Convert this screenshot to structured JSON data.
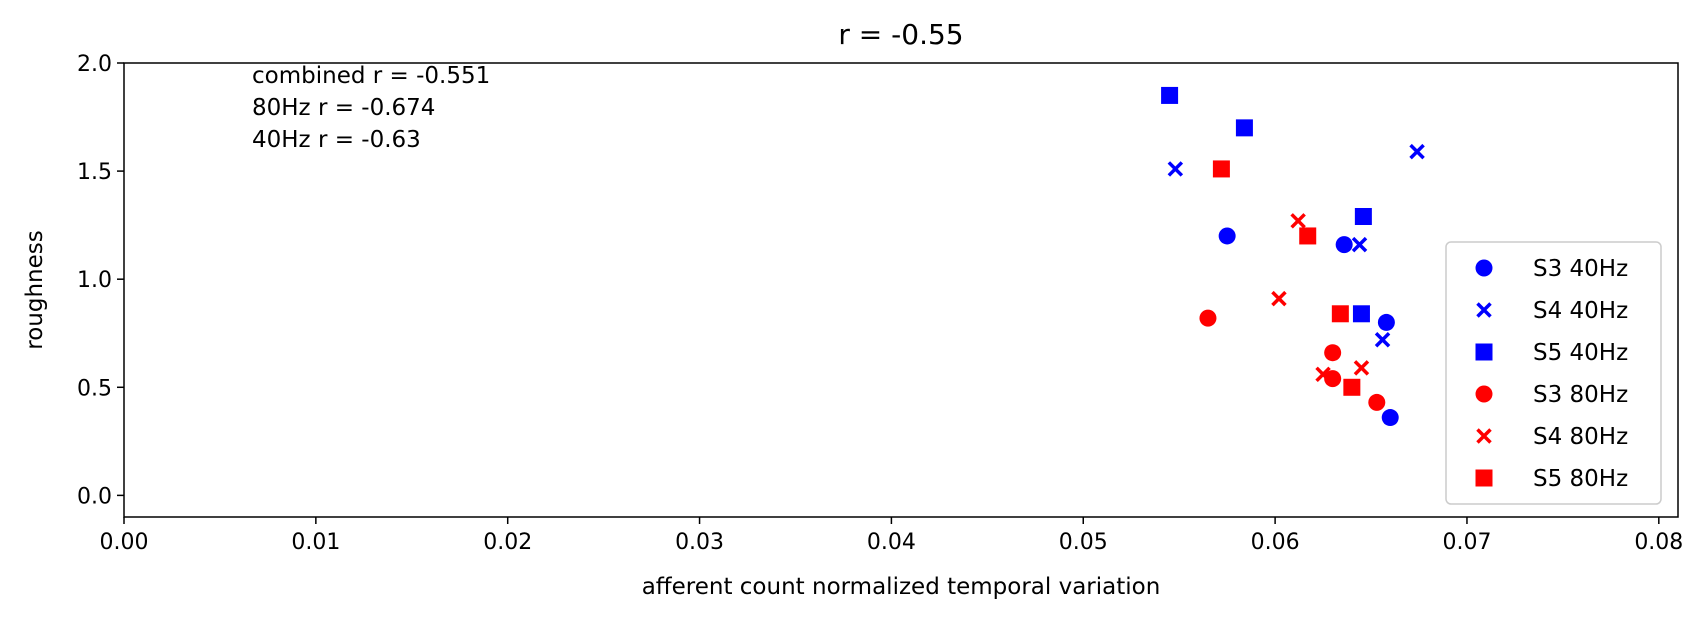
{
  "chart_data": {
    "type": "scatter",
    "title": "r = -0.55",
    "xlabel": "afferent count normalized temporal variation",
    "ylabel": "roughness",
    "xlim": [
      0.0,
      0.081
    ],
    "ylim": [
      -0.1,
      2.0
    ],
    "x_ticks": [
      "0.00",
      "0.01",
      "0.02",
      "0.03",
      "0.04",
      "0.05",
      "0.06",
      "0.07",
      "0.08"
    ],
    "y_ticks": [
      "0.0",
      "0.5",
      "1.0",
      "1.5",
      "2.0"
    ],
    "grid": false,
    "legend_position": "lower-right",
    "annotations": [
      "combined r = -0.551",
      "80Hz r = -0.674",
      "40Hz r = -0.63"
    ],
    "series": [
      {
        "name": "S3 40Hz",
        "color": "#0000ff",
        "marker": "circle",
        "points": [
          [
            0.0575,
            1.2
          ],
          [
            0.0636,
            1.16
          ],
          [
            0.0658,
            0.8
          ],
          [
            0.066,
            0.36
          ]
        ]
      },
      {
        "name": "S4 40Hz",
        "color": "#0000ff",
        "marker": "x",
        "points": [
          [
            0.0548,
            1.51
          ],
          [
            0.0674,
            1.59
          ],
          [
            0.0644,
            1.16
          ],
          [
            0.0656,
            0.72
          ]
        ]
      },
      {
        "name": "S5 40Hz",
        "color": "#0000ff",
        "marker": "square",
        "points": [
          [
            0.0545,
            1.85
          ],
          [
            0.0584,
            1.7
          ],
          [
            0.0646,
            1.29
          ],
          [
            0.0645,
            0.84
          ]
        ]
      },
      {
        "name": "S3 80Hz",
        "color": "#ff0000",
        "marker": "circle",
        "points": [
          [
            0.0565,
            0.82
          ],
          [
            0.063,
            0.66
          ],
          [
            0.063,
            0.54
          ],
          [
            0.0653,
            0.43
          ]
        ]
      },
      {
        "name": "S4 80Hz",
        "color": "#ff0000",
        "marker": "x",
        "points": [
          [
            0.0612,
            1.27
          ],
          [
            0.0602,
            0.91
          ],
          [
            0.0625,
            0.56
          ],
          [
            0.0645,
            0.59
          ]
        ]
      },
      {
        "name": "S5 80Hz",
        "color": "#ff0000",
        "marker": "square",
        "points": [
          [
            0.0572,
            1.51
          ],
          [
            0.0617,
            1.2
          ],
          [
            0.0634,
            0.84
          ],
          [
            0.064,
            0.5
          ]
        ]
      }
    ]
  }
}
